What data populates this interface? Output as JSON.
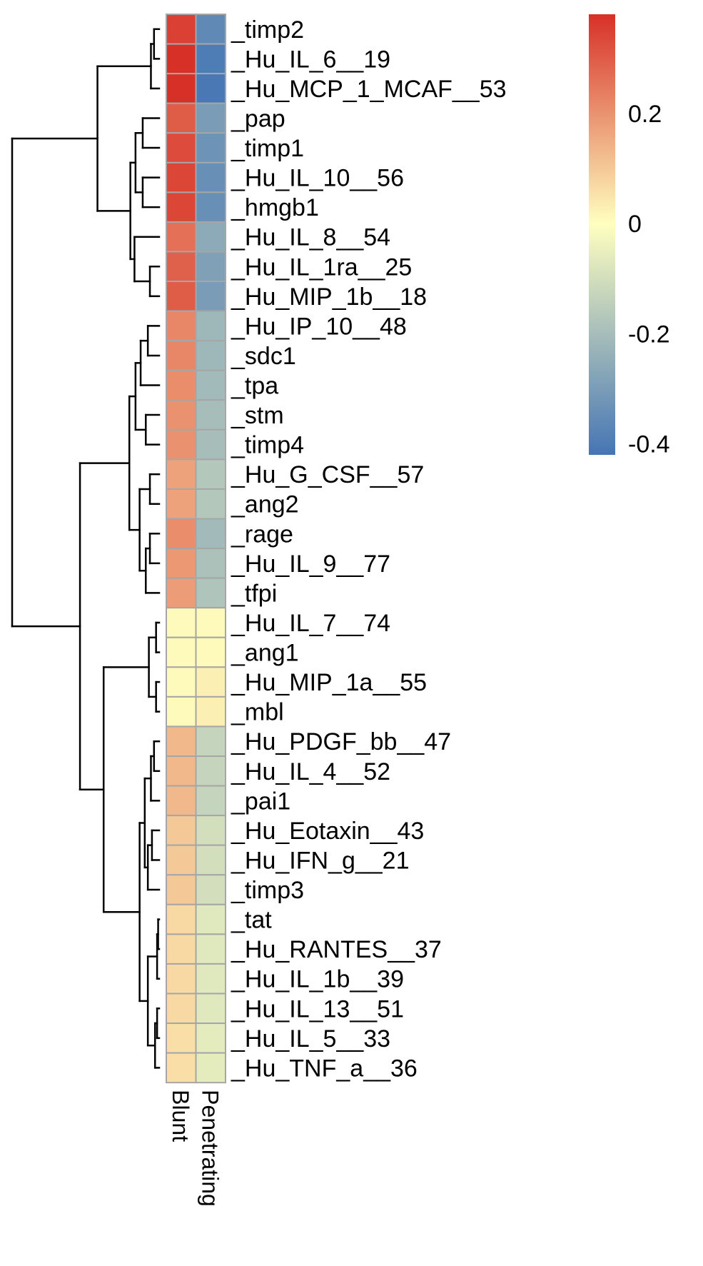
{
  "chart_data": {
    "type": "heatmap",
    "title": "",
    "columns": [
      "Blunt",
      "Penetrating"
    ],
    "rows": [
      {
        "label": "_timp2",
        "values": [
          0.35,
          -0.36
        ]
      },
      {
        "label": "_Hu_IL_6__19",
        "values": [
          0.38,
          -0.4
        ]
      },
      {
        "label": "_Hu_MCP_1_MCAF__53",
        "values": [
          0.38,
          -0.41
        ]
      },
      {
        "label": "_pap",
        "values": [
          0.3,
          -0.3
        ]
      },
      {
        "label": "_timp1",
        "values": [
          0.33,
          -0.33
        ]
      },
      {
        "label": "_Hu_IL_10__56",
        "values": [
          0.34,
          -0.34
        ]
      },
      {
        "label": "_hmgb1",
        "values": [
          0.34,
          -0.34
        ]
      },
      {
        "label": "_Hu_IL_8__54",
        "values": [
          0.26,
          -0.26
        ]
      },
      {
        "label": "_Hu_IL_1ra__25",
        "values": [
          0.29,
          -0.29
        ]
      },
      {
        "label": "_Hu_MIP_1b__18",
        "values": [
          0.3,
          -0.3
        ]
      },
      {
        "label": "_Hu_IP_10__48",
        "values": [
          0.22,
          -0.22
        ]
      },
      {
        "label": "_sdc1",
        "values": [
          0.22,
          -0.22
        ]
      },
      {
        "label": "_tpa",
        "values": [
          0.21,
          -0.21
        ]
      },
      {
        "label": "_stm",
        "values": [
          0.2,
          -0.2
        ]
      },
      {
        "label": "_timp4",
        "values": [
          0.2,
          -0.2
        ]
      },
      {
        "label": "_Hu_G_CSF__57",
        "values": [
          0.17,
          -0.17
        ]
      },
      {
        "label": "_ang2",
        "values": [
          0.17,
          -0.17
        ]
      },
      {
        "label": "_rage",
        "values": [
          0.21,
          -0.21
        ]
      },
      {
        "label": "_Hu_IL_9__77",
        "values": [
          0.19,
          -0.19
        ]
      },
      {
        "label": "_tfpi",
        "values": [
          0.18,
          -0.18
        ]
      },
      {
        "label": "_Hu_IL_7__74",
        "values": [
          0.01,
          0.01
        ]
      },
      {
        "label": "_ang1",
        "values": [
          0.01,
          0.01
        ]
      },
      {
        "label": "_Hu_MIP_1a__55",
        "values": [
          0.01,
          0.03
        ]
      },
      {
        "label": "_mbl",
        "values": [
          0.01,
          0.03
        ]
      },
      {
        "label": "_Hu_PDGF_bb__47",
        "values": [
          0.13,
          -0.13
        ]
      },
      {
        "label": "_Hu_IL_4__52",
        "values": [
          0.13,
          -0.13
        ]
      },
      {
        "label": "_pai1",
        "values": [
          0.13,
          -0.13
        ]
      },
      {
        "label": "_Hu_Eotaxin__43",
        "values": [
          0.1,
          -0.1
        ]
      },
      {
        "label": "_Hu_IFN_g__21",
        "values": [
          0.1,
          -0.1
        ]
      },
      {
        "label": "_timp3",
        "values": [
          0.1,
          -0.1
        ]
      },
      {
        "label": "_tat",
        "values": [
          0.07,
          -0.07
        ]
      },
      {
        "label": "_Hu_RANTES__37",
        "values": [
          0.07,
          -0.07
        ]
      },
      {
        "label": "_Hu_IL_1b__39",
        "values": [
          0.07,
          -0.07
        ]
      },
      {
        "label": "_Hu_IL_13__51",
        "values": [
          0.07,
          -0.07
        ]
      },
      {
        "label": "_Hu_IL_5__33",
        "values": [
          0.06,
          -0.06
        ]
      },
      {
        "label": "_Hu_TNF_a__36",
        "values": [
          0.06,
          -0.06
        ]
      }
    ],
    "color_scale": {
      "min": -0.42,
      "max": 0.38,
      "low_color": "#4575b4",
      "mid_color": "#ffffbf",
      "high_color": "#d73027",
      "ticks": [
        0.2,
        0,
        -0.2,
        -0.4
      ],
      "tick_labels": [
        "0.2",
        "0",
        "-0.2",
        "-0.4"
      ]
    },
    "dendrogram": {
      "side": "left",
      "merges": [
        [
          0,
          1,
          0.5
        ],
        [
          36,
          2,
          0.8
        ],
        [
          3,
          4,
          1.6
        ],
        [
          5,
          6,
          1.6
        ],
        [
          38,
          39,
          2.3
        ],
        [
          8,
          9,
          0.9
        ],
        [
          7,
          41,
          2.4
        ],
        [
          40,
          42,
          2.8
        ],
        [
          37,
          43,
          6.0
        ],
        [
          10,
          11,
          1.1
        ],
        [
          45,
          12,
          1.8
        ],
        [
          13,
          14,
          1.3
        ],
        [
          46,
          47,
          2.3
        ],
        [
          15,
          16,
          0.9
        ],
        [
          17,
          18,
          0.9
        ],
        [
          50,
          19,
          1.3
        ],
        [
          49,
          51,
          1.9
        ],
        [
          48,
          52,
          2.9
        ],
        [
          20,
          21,
          0.3
        ],
        [
          22,
          23,
          0.3
        ],
        [
          54,
          55,
          1.0
        ],
        [
          24,
          25,
          0.5
        ],
        [
          57,
          26,
          0.8
        ],
        [
          27,
          28,
          0.7
        ],
        [
          59,
          29,
          1.1
        ],
        [
          58,
          60,
          1.4
        ],
        [
          30,
          31,
          0.1
        ],
        [
          62,
          32,
          0.2
        ],
        [
          33,
          34,
          0.2
        ],
        [
          64,
          35,
          0.4
        ],
        [
          63,
          65,
          1.1
        ],
        [
          61,
          66,
          1.9
        ],
        [
          56,
          67,
          5.4
        ],
        [
          53,
          68,
          7.7
        ],
        [
          44,
          69,
          14.3
        ]
      ]
    }
  }
}
